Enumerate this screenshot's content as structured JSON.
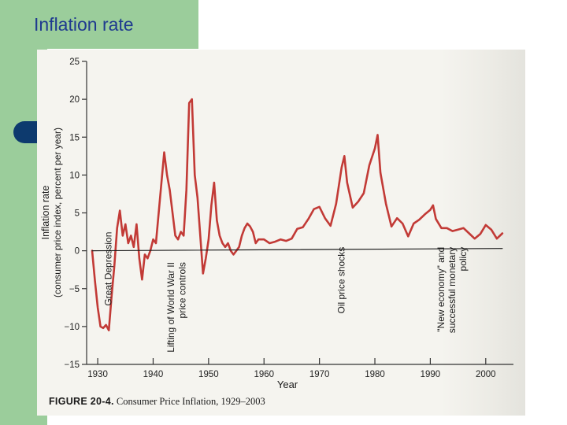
{
  "slide": {
    "title": "Inflation rate"
  },
  "figure": {
    "label": "FIGURE 20-4.",
    "caption": "Consumer Price Inflation, 1929–2003"
  },
  "chart_data": {
    "type": "line",
    "xlabel": "Year",
    "ylabel_line1": "Inflation rate",
    "ylabel_line2": "(consumer price index, percent per year)",
    "xlim": [
      1928,
      2005
    ],
    "ylim": [
      -15,
      25
    ],
    "xticks": [
      1930,
      1940,
      1950,
      1960,
      1970,
      1980,
      1990,
      2000
    ],
    "yticks": [
      25,
      20,
      15,
      10,
      5,
      0,
      -5,
      -10,
      -15
    ],
    "grid": false,
    "annotations": [
      {
        "text": "Great Depression",
        "x": 1932.5,
        "y": 2.5
      },
      {
        "text": "Lifting of World War II",
        "x": 1943.8,
        "y": -1.5
      },
      {
        "text": "price controls",
        "x": 1945.8,
        "y": -1.5
      },
      {
        "text": "Oil price shocks",
        "x": 1974.5,
        "y": 0.5
      },
      {
        "text": "\"New economy\" and",
        "x": 1992.5,
        "y": 0.5
      },
      {
        "text": "successful monetary",
        "x": 1994.5,
        "y": 0.5
      },
      {
        "text": "policy",
        "x": 1996.5,
        "y": 0.5
      }
    ],
    "series": [
      {
        "color": "#c23a36",
        "x": [
          1929.0,
          1929.5,
          1930.0,
          1930.5,
          1931.0,
          1931.5,
          1932.0,
          1932.5,
          1933.0,
          1933.5,
          1934.0,
          1934.5,
          1935.0,
          1935.5,
          1936.0,
          1936.5,
          1937.0,
          1937.5,
          1938.0,
          1938.5,
          1939.0,
          1939.5,
          1940.0,
          1940.5,
          1941.0,
          1941.5,
          1942.0,
          1942.5,
          1943.0,
          1943.5,
          1944.0,
          1944.5,
          1945.0,
          1945.5,
          1946.0,
          1946.5,
          1947.0,
          1947.5,
          1948.0,
          1948.5,
          1949.0,
          1949.5,
          1950.0,
          1950.5,
          1951.0,
          1951.5,
          1952.0,
          1952.5,
          1953.0,
          1953.5,
          1954.0,
          1954.5,
          1955.0,
          1955.5,
          1956.0,
          1956.5,
          1957.0,
          1957.5,
          1958.0,
          1958.5,
          1959.0,
          1960.0,
          1961.0,
          1962.0,
          1963.0,
          1964.0,
          1965.0,
          1966.0,
          1967.0,
          1968.0,
          1969.0,
          1970.0,
          1971.0,
          1972.0,
          1973.0,
          1974.0,
          1974.5,
          1975.0,
          1976.0,
          1977.0,
          1978.0,
          1979.0,
          1980.0,
          1980.5,
          1981.0,
          1982.0,
          1983.0,
          1984.0,
          1985.0,
          1986.0,
          1987.0,
          1988.0,
          1989.0,
          1990.0,
          1990.5,
          1991.0,
          1992.0,
          1993.0,
          1994.0,
          1995.0,
          1996.0,
          1997.0,
          1998.0,
          1999.0,
          2000.0,
          2001.0,
          2002.0,
          2003.0
        ],
        "y": [
          0.0,
          -4.0,
          -7.5,
          -10.0,
          -10.2,
          -9.8,
          -10.5,
          -6.0,
          -2.0,
          3.0,
          5.3,
          2.0,
          3.5,
          1.0,
          2.0,
          0.5,
          3.5,
          -1.0,
          -3.8,
          -0.5,
          -1.0,
          0.0,
          1.5,
          1.0,
          5.0,
          9.0,
          13.0,
          10.0,
          8.0,
          5.0,
          2.0,
          1.5,
          2.5,
          2.0,
          8.0,
          19.5,
          20.0,
          10.0,
          7.0,
          2.0,
          -3.0,
          -1.0,
          1.5,
          6.0,
          9.0,
          4.0,
          2.0,
          1.0,
          0.5,
          1.0,
          0.0,
          -0.5,
          0.0,
          0.5,
          2.0,
          3.0,
          3.6,
          3.2,
          2.5,
          1.0,
          1.5,
          1.5,
          1.0,
          1.2,
          1.5,
          1.3,
          1.6,
          2.9,
          3.1,
          4.2,
          5.5,
          5.8,
          4.3,
          3.3,
          6.2,
          11.0,
          12.5,
          9.0,
          5.7,
          6.5,
          7.6,
          11.3,
          13.5,
          15.3,
          10.3,
          6.2,
          3.2,
          4.3,
          3.6,
          1.9,
          3.6,
          4.1,
          4.8,
          5.4,
          6.0,
          4.2,
          3.0,
          3.0,
          2.6,
          2.8,
          3.0,
          2.3,
          1.6,
          2.2,
          3.4,
          2.8,
          1.6,
          2.3
        ]
      },
      {
        "name": "trend",
        "color": "#1a1a1a",
        "x": [
          1929,
          2003
        ],
        "y": [
          0.0,
          0.3
        ]
      }
    ]
  }
}
